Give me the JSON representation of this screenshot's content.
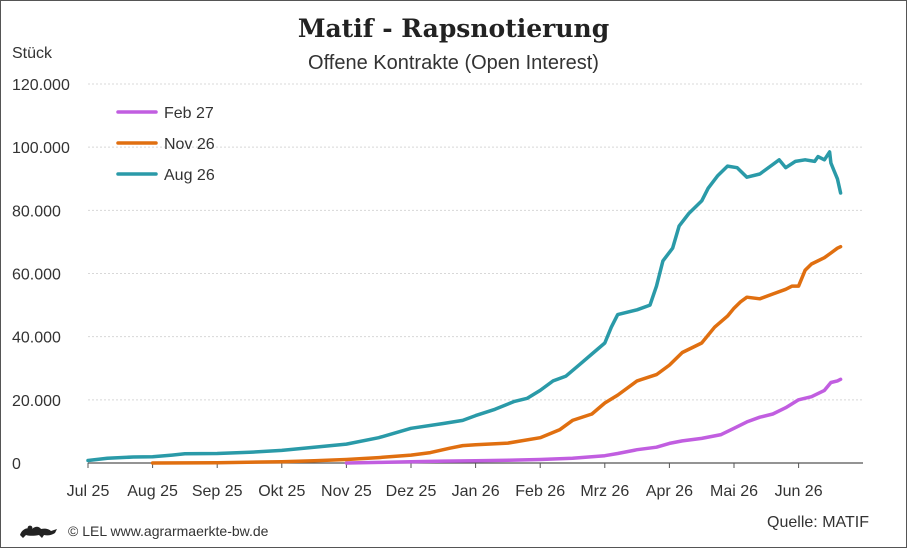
{
  "chart_data": {
    "type": "line",
    "title": "Matif - Rapsnotierung",
    "subtitle": "Offene Kontrakte (Open Interest)",
    "ylabel": "Stück",
    "ylim": [
      0,
      120000
    ],
    "yticks": [
      0,
      20000,
      40000,
      60000,
      80000,
      100000,
      120000
    ],
    "ytick_labels": [
      "0",
      "20.000",
      "40.000",
      "60.000",
      "80.000",
      "100.000",
      "120.000"
    ],
    "xlim": [
      0,
      12.5
    ],
    "xticks": [
      0,
      1,
      2,
      3,
      4,
      5,
      6,
      7,
      8,
      9,
      10,
      11
    ],
    "xtick_labels": [
      "Jul 25",
      "Aug 25",
      "Sep 25",
      "Okt 25",
      "Nov 25",
      "Dez 25",
      "Jan 26",
      "Feb 26",
      "Mrz 26",
      "Apr 26",
      "Mai 26",
      "Jun 26"
    ],
    "grid": true,
    "legend_position": "top-left",
    "series": [
      {
        "name": "Feb 27",
        "color": "#c15ee0",
        "points": [
          [
            4.0,
            0
          ],
          [
            4.5,
            200
          ],
          [
            5.0,
            400
          ],
          [
            5.5,
            600
          ],
          [
            6.0,
            700
          ],
          [
            6.5,
            900
          ],
          [
            7.0,
            1100
          ],
          [
            7.5,
            1500
          ],
          [
            8.0,
            2300
          ],
          [
            8.2,
            3000
          ],
          [
            8.5,
            4200
          ],
          [
            8.8,
            5000
          ],
          [
            9.0,
            6200
          ],
          [
            9.2,
            7000
          ],
          [
            9.5,
            7800
          ],
          [
            9.8,
            9000
          ],
          [
            10.0,
            11000
          ],
          [
            10.2,
            13000
          ],
          [
            10.4,
            14500
          ],
          [
            10.6,
            15500
          ],
          [
            10.8,
            17500
          ],
          [
            11.0,
            20000
          ],
          [
            11.2,
            21000
          ],
          [
            11.4,
            23000
          ],
          [
            11.5,
            25500
          ],
          [
            11.6,
            26000
          ],
          [
            11.65,
            26500
          ]
        ]
      },
      {
        "name": "Nov 26",
        "color": "#e06f10",
        "points": [
          [
            1.0,
            0
          ],
          [
            2.0,
            100
          ],
          [
            3.0,
            400
          ],
          [
            3.5,
            700
          ],
          [
            4.0,
            1100
          ],
          [
            4.5,
            1700
          ],
          [
            5.0,
            2500
          ],
          [
            5.3,
            3300
          ],
          [
            5.6,
            4700
          ],
          [
            5.8,
            5500
          ],
          [
            6.0,
            5800
          ],
          [
            6.5,
            6300
          ],
          [
            7.0,
            8000
          ],
          [
            7.3,
            10500
          ],
          [
            7.5,
            13500
          ],
          [
            7.8,
            15500
          ],
          [
            8.0,
            19000
          ],
          [
            8.2,
            21500
          ],
          [
            8.5,
            26000
          ],
          [
            8.8,
            28000
          ],
          [
            9.0,
            31000
          ],
          [
            9.2,
            35000
          ],
          [
            9.5,
            38000
          ],
          [
            9.7,
            43000
          ],
          [
            9.9,
            46500
          ],
          [
            10.0,
            49000
          ],
          [
            10.1,
            51000
          ],
          [
            10.2,
            52500
          ],
          [
            10.4,
            52000
          ],
          [
            10.6,
            53500
          ],
          [
            10.8,
            55000
          ],
          [
            10.9,
            56000
          ],
          [
            11.0,
            56000
          ],
          [
            11.1,
            61000
          ],
          [
            11.2,
            63000
          ],
          [
            11.4,
            65000
          ],
          [
            11.5,
            66500
          ],
          [
            11.6,
            68000
          ],
          [
            11.65,
            68500
          ]
        ]
      },
      {
        "name": "Aug 26",
        "color": "#2a9aa8",
        "points": [
          [
            0,
            800
          ],
          [
            0.3,
            1500
          ],
          [
            0.7,
            1900
          ],
          [
            1.0,
            2000
          ],
          [
            1.3,
            2500
          ],
          [
            1.5,
            2900
          ],
          [
            2.0,
            3000
          ],
          [
            2.5,
            3400
          ],
          [
            3.0,
            4000
          ],
          [
            3.5,
            5000
          ],
          [
            4.0,
            6000
          ],
          [
            4.5,
            8000
          ],
          [
            5.0,
            11000
          ],
          [
            5.5,
            12500
          ],
          [
            5.8,
            13500
          ],
          [
            6.0,
            15000
          ],
          [
            6.3,
            17000
          ],
          [
            6.6,
            19500
          ],
          [
            6.8,
            20500
          ],
          [
            7.0,
            23000
          ],
          [
            7.2,
            26000
          ],
          [
            7.4,
            27500
          ],
          [
            7.6,
            31000
          ],
          [
            7.8,
            34500
          ],
          [
            8.0,
            38000
          ],
          [
            8.1,
            43000
          ],
          [
            8.2,
            47000
          ],
          [
            8.5,
            48500
          ],
          [
            8.7,
            50000
          ],
          [
            8.8,
            56000
          ],
          [
            8.9,
            64000
          ],
          [
            9.05,
            68000
          ],
          [
            9.15,
            75000
          ],
          [
            9.3,
            79000
          ],
          [
            9.5,
            83000
          ],
          [
            9.6,
            87000
          ],
          [
            9.75,
            91000
          ],
          [
            9.9,
            94000
          ],
          [
            10.05,
            93500
          ],
          [
            10.2,
            90500
          ],
          [
            10.4,
            91500
          ],
          [
            10.6,
            94500
          ],
          [
            10.7,
            96000
          ],
          [
            10.8,
            93500
          ],
          [
            10.95,
            95500
          ],
          [
            11.1,
            96000
          ],
          [
            11.25,
            95500
          ],
          [
            11.3,
            97000
          ],
          [
            11.4,
            96000
          ],
          [
            11.48,
            98500
          ],
          [
            11.5,
            95000
          ],
          [
            11.55,
            92500
          ],
          [
            11.6,
            90000
          ],
          [
            11.65,
            85500
          ]
        ]
      }
    ]
  },
  "footer": {
    "copyright": "© LEL www.agrarmaerkte-bw.de",
    "source": "Quelle: MATIF",
    "logo_icon": "lion-icon"
  },
  "style": {
    "grid_color": "#d8d8d8",
    "axis_color": "#555555",
    "frame_color": "#555555"
  }
}
